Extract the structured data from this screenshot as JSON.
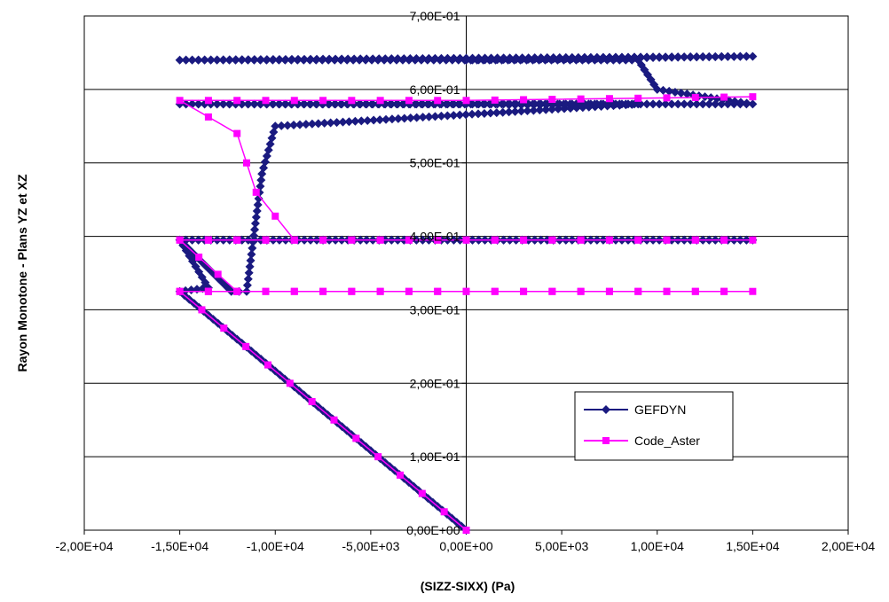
{
  "chart_data": {
    "type": "line",
    "title": "",
    "xlabel": "(SIZZ-SIXX) (Pa)",
    "ylabel": "Rayon Monotone - Plans YZ et XZ",
    "xlim": [
      -20000,
      20000
    ],
    "ylim": [
      0,
      0.7
    ],
    "x_ticks": [
      -20000,
      -15000,
      -10000,
      -5000,
      0,
      5000,
      10000,
      15000,
      20000
    ],
    "x_tick_labels": [
      "-2,00E+04",
      "-1,50E+04",
      "-1,00E+04",
      "-5,00E+03",
      "0,00E+00",
      "5,00E+03",
      "1,00E+04",
      "1,50E+04",
      "2,00E+04"
    ],
    "y_ticks": [
      0,
      0.1,
      0.2,
      0.3,
      0.4,
      0.5,
      0.6,
      0.7
    ],
    "y_tick_labels": [
      "0,00E+00",
      "1,00E-01",
      "2,00E-01",
      "3,00E-01",
      "4,00E-01",
      "5,00E-01",
      "6,00E-01",
      "7,00E-01"
    ],
    "grid": "horizontal",
    "legend_position": "inside-right",
    "series": [
      {
        "name": "GEFDYN",
        "color": "#1a1a80",
        "marker": "diamond",
        "x": [
          0,
          -15000,
          -13500,
          -15000,
          15000,
          -15000,
          -12300,
          -11500,
          -10700,
          -10000,
          9000,
          -15000,
          15000,
          10000,
          9000,
          -15000,
          15000,
          0
        ],
        "y": [
          0,
          0.325,
          0.33,
          0.395,
          0.395,
          0.395,
          0.325,
          0.325,
          0.485,
          0.55,
          0.58,
          0.58,
          0.58,
          0.6,
          0.64,
          0.64,
          0.645,
          0.64
        ]
      },
      {
        "name": "Code_Aster",
        "color": "#ff00ff",
        "marker": "square",
        "x": [
          0,
          -15000,
          15000,
          -15000,
          -12000,
          -15000,
          15000,
          -15000,
          -9000,
          -11000,
          -12000,
          -15000,
          0,
          15000
        ],
        "y": [
          0,
          0.325,
          0.325,
          0.325,
          0.325,
          0.395,
          0.395,
          0.395,
          0.395,
          0.46,
          0.54,
          0.585,
          0.585,
          0.59
        ]
      }
    ]
  }
}
